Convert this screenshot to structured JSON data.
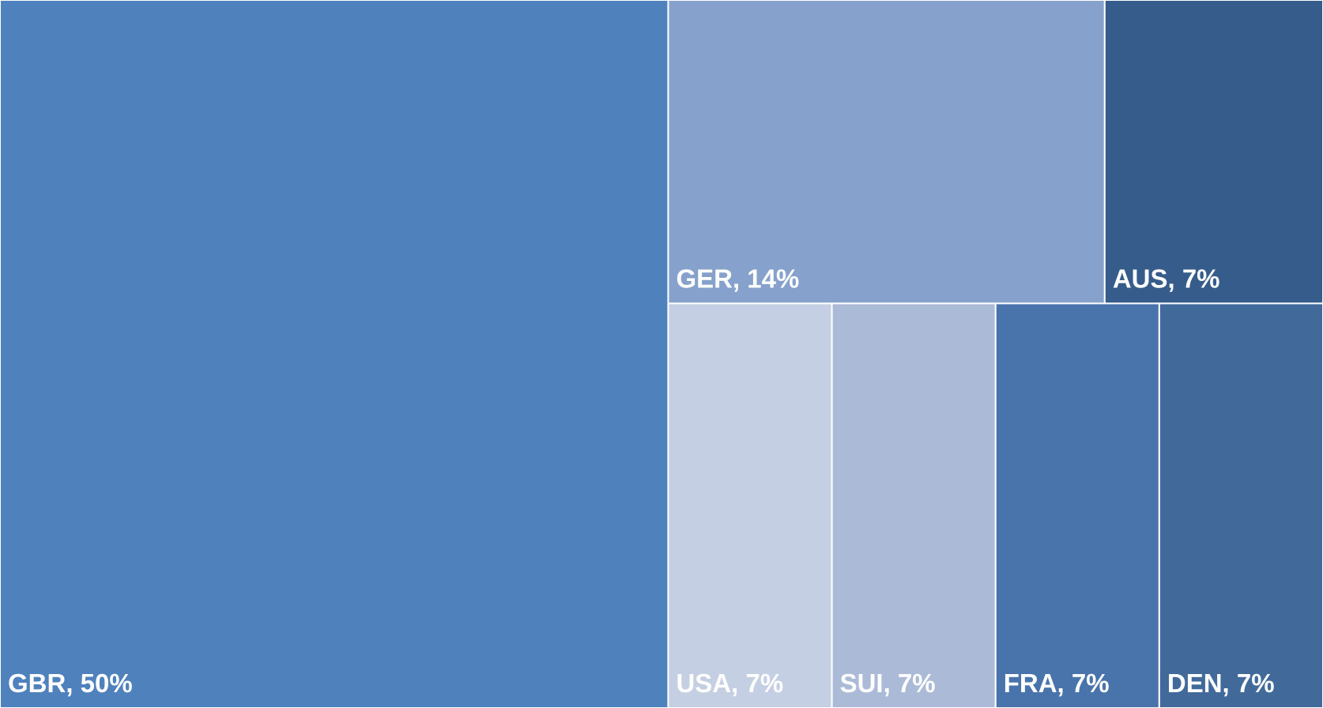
{
  "chart_data": {
    "type": "treemap",
    "values": [
      50,
      14,
      7,
      7,
      7,
      7,
      7
    ],
    "value_labels": [
      "GBR, 50%",
      "GER, 14%",
      "AUS, 7%",
      "USA, 7%",
      "SUI, 7%",
      "FRA, 7%",
      "DEN, 7%"
    ],
    "colors": [
      "#4f81bd",
      "#86a2cc",
      "#355c8a",
      "#c4cfe3",
      "#abbad7",
      "#4874ab",
      "#416a9b"
    ]
  }
}
